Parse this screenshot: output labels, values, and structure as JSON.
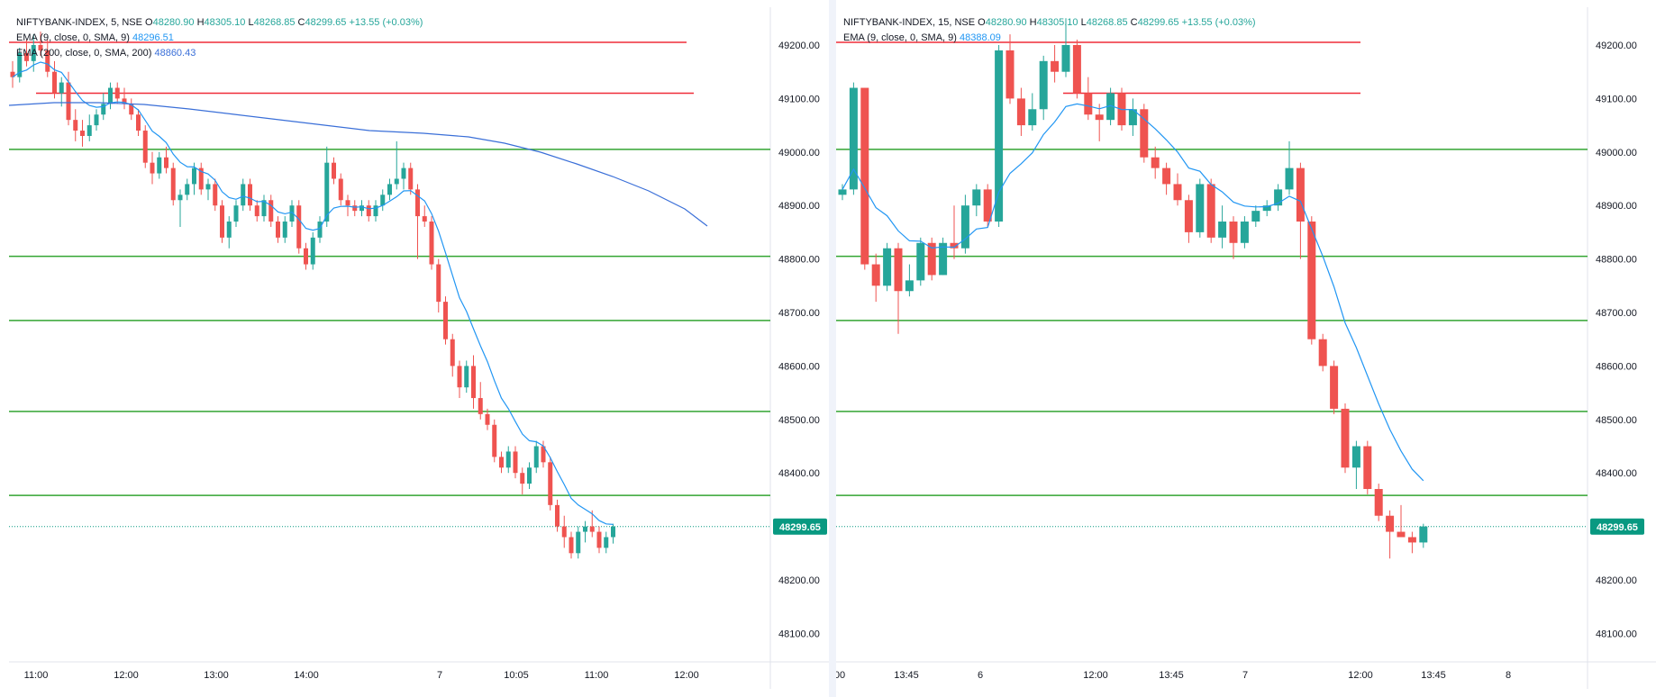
{
  "colors": {
    "up": "#26a69a",
    "down": "#ef5350",
    "ema9": "#2196f3",
    "ema200": "#3a6fd8",
    "red_line": "#ef2d39",
    "green_line": "#33a532",
    "last_price_bg": "#089981",
    "grid": "#f0f3fa",
    "border": "#e0e3eb",
    "text": "#131722",
    "axis_text": "#131722"
  },
  "charts": [
    {
      "legend": {
        "symbol": "NIFTYBANK-INDEX, 5, NSE",
        "o_label": "O",
        "o": "48280.90",
        "h_label": "H",
        "h": "48305.10",
        "l_label": "L",
        "l": "48268.85",
        "c_label": "C",
        "c": "48299.65",
        "change": "+13.55 (+0.03%)",
        "ema_lines": [
          {
            "label": "EMA (9, close, 0, SMA, 9)",
            "value": "48296.51"
          },
          {
            "label": "EMA (200, close, 0, SMA, 200)",
            "value": "48860.43"
          }
        ]
      },
      "last_price": "48299.65",
      "y_ticks": [
        "49200.00",
        "49100.00",
        "49000.00",
        "48900.00",
        "48800.00",
        "48700.00",
        "48600.00",
        "48500.00",
        "48400.00",
        "48200.00",
        "48100.00"
      ],
      "x_ticks": [
        "11:00",
        "12:00",
        "13:00",
        "14:00",
        "7",
        "10:05",
        "11:00",
        "12:00"
      ]
    },
    {
      "legend": {
        "symbol": "NIFTYBANK-INDEX, 15, NSE",
        "o_label": "O",
        "o": "48280.90",
        "h_label": "H",
        "h": "48305.10",
        "l_label": "L",
        "l": "48268.85",
        "c_label": "C",
        "c": "48299.65",
        "change": "+13.55 (+0.03%)",
        "ema_lines": [
          {
            "label": "EMA (9, close, 0, SMA, 9)",
            "value": "48388.09"
          }
        ]
      },
      "last_price": "48299.65",
      "y_ticks": [
        "49200.00",
        "49100.00",
        "49000.00",
        "48900.00",
        "48800.00",
        "48700.00",
        "48600.00",
        "48500.00",
        "48400.00",
        "48200.00",
        "48100.00"
      ],
      "x_ticks": [
        "00",
        "13:45",
        "6",
        "12:00",
        "13:45",
        "7",
        "12:00",
        "13:45",
        "8"
      ]
    }
  ],
  "chart_data": [
    {
      "type": "candlestick",
      "symbol": "NIFTYBANK-INDEX",
      "timeframe": "5",
      "exchange": "NSE",
      "ylim": [
        48020,
        49300
      ],
      "x_ticks": [
        "11:00",
        "12:00",
        "13:00",
        "14:00",
        "7",
        "10:05",
        "11:00",
        "12:00"
      ],
      "horizontal_levels": {
        "red": [
          49205,
          49110
        ],
        "green": [
          49005,
          48805,
          48685,
          48515,
          48358
        ]
      },
      "ohlc": [
        [
          49150,
          49170,
          49120,
          49140
        ],
        [
          49140,
          49195,
          49130,
          49185
        ],
        [
          49185,
          49210,
          49160,
          49170
        ],
        [
          49170,
          49220,
          49150,
          49200
        ],
        [
          49200,
          49225,
          49180,
          49190
        ],
        [
          49190,
          49210,
          49140,
          49150
        ],
        [
          49150,
          49170,
          49100,
          49110
        ],
        [
          49110,
          49140,
          49085,
          49130
        ],
        [
          49130,
          49150,
          49050,
          49060
        ],
        [
          49060,
          49080,
          49020,
          49040
        ],
        [
          49040,
          49060,
          49010,
          49030
        ],
        [
          49030,
          49070,
          49020,
          49050
        ],
        [
          49050,
          49080,
          49040,
          49070
        ],
        [
          49070,
          49110,
          49060,
          49090
        ],
        [
          49090,
          49130,
          49080,
          49120
        ],
        [
          49120,
          49130,
          49090,
          49100
        ],
        [
          49100,
          49120,
          49080,
          49090
        ],
        [
          49090,
          49100,
          49060,
          49070
        ],
        [
          49070,
          49080,
          49030,
          49040
        ],
        [
          49040,
          49050,
          48970,
          48980
        ],
        [
          48980,
          49000,
          48940,
          48960
        ],
        [
          48960,
          49000,
          48950,
          48990
        ],
        [
          48990,
          49010,
          48960,
          48970
        ],
        [
          48970,
          48980,
          48900,
          48910
        ],
        [
          48910,
          48930,
          48860,
          48920
        ],
        [
          48920,
          48950,
          48910,
          48940
        ],
        [
          48940,
          48980,
          48920,
          48970
        ],
        [
          48970,
          48980,
          48920,
          48930
        ],
        [
          48930,
          48950,
          48910,
          48940
        ],
        [
          48940,
          48950,
          48890,
          48900
        ],
        [
          48900,
          48910,
          48830,
          48840
        ],
        [
          48840,
          48880,
          48820,
          48870
        ],
        [
          48870,
          48910,
          48860,
          48900
        ],
        [
          48900,
          48950,
          48890,
          48940
        ],
        [
          48940,
          48950,
          48890,
          48900
        ],
        [
          48900,
          48910,
          48870,
          48880
        ],
        [
          48880,
          48920,
          48870,
          48910
        ],
        [
          48910,
          48920,
          48860,
          48870
        ],
        [
          48870,
          48880,
          48830,
          48840
        ],
        [
          48840,
          48880,
          48830,
          48870
        ],
        [
          48870,
          48910,
          48860,
          48900
        ],
        [
          48900,
          48910,
          48810,
          48820
        ],
        [
          48820,
          48830,
          48780,
          48790
        ],
        [
          48790,
          48850,
          48780,
          48840
        ],
        [
          48840,
          48880,
          48830,
          48870
        ],
        [
          48870,
          49010,
          48860,
          48980
        ],
        [
          48980,
          48990,
          48940,
          48950
        ],
        [
          48950,
          48960,
          48900,
          48910
        ],
        [
          48910,
          48920,
          48880,
          48900
        ],
        [
          48900,
          48910,
          48880,
          48890
        ],
        [
          48890,
          48910,
          48880,
          48900
        ],
        [
          48900,
          48910,
          48870,
          48880
        ],
        [
          48880,
          48910,
          48870,
          48900
        ],
        [
          48900,
          48930,
          48890,
          48920
        ],
        [
          48920,
          48950,
          48910,
          48940
        ],
        [
          48940,
          49020,
          48930,
          48950
        ],
        [
          48950,
          48980,
          48930,
          48970
        ],
        [
          48970,
          48980,
          48920,
          48930
        ],
        [
          48930,
          48940,
          48800,
          48880
        ],
        [
          48880,
          48900,
          48860,
          48870
        ],
        [
          48870,
          48880,
          48780,
          48790
        ],
        [
          48790,
          48800,
          48700,
          48720
        ],
        [
          48720,
          48730,
          48640,
          48650
        ],
        [
          48650,
          48660,
          48580,
          48600
        ],
        [
          48600,
          48610,
          48540,
          48560
        ],
        [
          48560,
          48610,
          48550,
          48600
        ],
        [
          48600,
          48620,
          48520,
          48540
        ],
        [
          48540,
          48570,
          48500,
          48510
        ],
        [
          48510,
          48520,
          48480,
          48490
        ],
        [
          48490,
          48500,
          48420,
          48430
        ],
        [
          48430,
          48440,
          48400,
          48410
        ],
        [
          48410,
          48450,
          48400,
          48440
        ],
        [
          48440,
          48450,
          48390,
          48400
        ],
        [
          48400,
          48410,
          48360,
          48380
        ],
        [
          48380,
          48420,
          48370,
          48410
        ],
        [
          48410,
          48460,
          48400,
          48450
        ],
        [
          48450,
          48460,
          48410,
          48420
        ],
        [
          48420,
          48430,
          48330,
          48340
        ],
        [
          48340,
          48350,
          48290,
          48300
        ],
        [
          48300,
          48320,
          48260,
          48280
        ],
        [
          48280,
          48290,
          48240,
          48250
        ],
        [
          48250,
          48300,
          48240,
          48290
        ],
        [
          48290,
          48310,
          48270,
          48300
        ],
        [
          48300,
          48330,
          48280,
          48290
        ],
        [
          48290,
          48300,
          48250,
          48260
        ],
        [
          48260,
          48290,
          48250,
          48280
        ],
        [
          48280,
          48305,
          48268,
          48300
        ]
      ],
      "series": [
        {
          "name": "EMA (9, close, 0, SMA, 9)",
          "last_value": 48296.51
        },
        {
          "name": "EMA (200, close, 0, SMA, 200)",
          "last_value": 48860.43
        }
      ],
      "last_price": 48299.65
    },
    {
      "type": "candlestick",
      "symbol": "NIFTYBANK-INDEX",
      "timeframe": "15",
      "exchange": "NSE",
      "ylim": [
        48020,
        49300
      ],
      "x_ticks": [
        "00",
        "13:45",
        "6",
        "12:00",
        "13:45",
        "7",
        "12:00",
        "13:45",
        "8"
      ],
      "horizontal_levels": {
        "red": [
          49205,
          49110
        ],
        "green": [
          49005,
          48805,
          48685,
          48515,
          48358
        ]
      },
      "ohlc": [
        [
          48920,
          48940,
          48910,
          48930
        ],
        [
          48930,
          49130,
          48920,
          49120
        ],
        [
          49120,
          49120,
          48780,
          48790
        ],
        [
          48790,
          48810,
          48720,
          48750
        ],
        [
          48750,
          48830,
          48740,
          48820
        ],
        [
          48820,
          48830,
          48660,
          48740
        ],
        [
          48740,
          48790,
          48730,
          48760
        ],
        [
          48760,
          48840,
          48750,
          48830
        ],
        [
          48830,
          48840,
          48760,
          48770
        ],
        [
          48770,
          48840,
          48770,
          48830
        ],
        [
          48830,
          48900,
          48800,
          48820
        ],
        [
          48820,
          48920,
          48810,
          48900
        ],
        [
          48900,
          48940,
          48880,
          48930
        ],
        [
          48930,
          48940,
          48860,
          48870
        ],
        [
          48870,
          49200,
          48860,
          49190
        ],
        [
          49190,
          49220,
          49090,
          49100
        ],
        [
          49100,
          49120,
          49030,
          49050
        ],
        [
          49050,
          49110,
          49040,
          49080
        ],
        [
          49080,
          49180,
          49060,
          49170
        ],
        [
          49170,
          49200,
          49130,
          49150
        ],
        [
          49150,
          49250,
          49140,
          49200
        ],
        [
          49200,
          49210,
          49100,
          49110
        ],
        [
          49110,
          49140,
          49060,
          49070
        ],
        [
          49070,
          49090,
          49020,
          49060
        ],
        [
          49060,
          49120,
          49050,
          49110
        ],
        [
          49110,
          49120,
          49040,
          49050
        ],
        [
          49050,
          49100,
          49030,
          49080
        ],
        [
          49080,
          49090,
          48980,
          48990
        ],
        [
          48990,
          49010,
          48950,
          48970
        ],
        [
          48970,
          48980,
          48920,
          48940
        ],
        [
          48940,
          48960,
          48900,
          48910
        ],
        [
          48910,
          48920,
          48830,
          48850
        ],
        [
          48850,
          48950,
          48840,
          48940
        ],
        [
          48940,
          48950,
          48830,
          48840
        ],
        [
          48840,
          48900,
          48820,
          48870
        ],
        [
          48870,
          48880,
          48800,
          48830
        ],
        [
          48830,
          48880,
          48820,
          48870
        ],
        [
          48870,
          48900,
          48860,
          48890
        ],
        [
          48890,
          48910,
          48880,
          48900
        ],
        [
          48900,
          48940,
          48890,
          48930
        ],
        [
          48930,
          49020,
          48920,
          48970
        ],
        [
          48970,
          48980,
          48800,
          48870
        ],
        [
          48870,
          48880,
          48640,
          48650
        ],
        [
          48650,
          48660,
          48590,
          48600
        ],
        [
          48600,
          48610,
          48510,
          48520
        ],
        [
          48520,
          48530,
          48400,
          48410
        ],
        [
          48410,
          48460,
          48370,
          48450
        ],
        [
          48450,
          48460,
          48360,
          48370
        ],
        [
          48370,
          48380,
          48310,
          48320
        ],
        [
          48320,
          48330,
          48240,
          48290
        ],
        [
          48290,
          48340,
          48280,
          48280
        ],
        [
          48280,
          48290,
          48250,
          48270
        ],
        [
          48270,
          48305,
          48260,
          48300
        ]
      ],
      "series": [
        {
          "name": "EMA (9, close, 0, SMA, 9)",
          "last_value": 48388.09
        }
      ],
      "last_price": 48299.65
    }
  ]
}
